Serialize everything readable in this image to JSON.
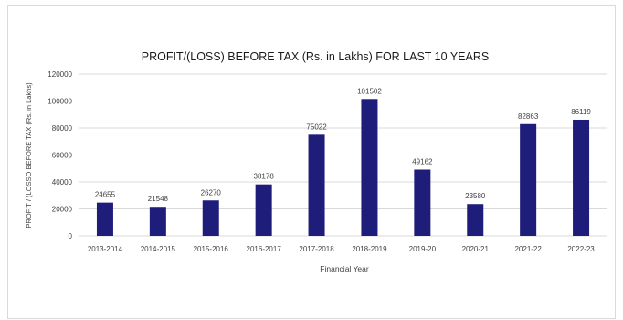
{
  "chart_data": {
    "type": "bar",
    "title": "PROFIT/(LOSS) BEFORE TAX (Rs. in Lakhs) FOR LAST 10 YEARS",
    "xlabel": "Financial Year",
    "ylabel": "PROFIT / (LOSSO BEFORE TAX (Rs. in Lakhs)",
    "categories": [
      "2013-2014",
      "2014-2015",
      "2015-2016",
      "2016-2017",
      "2017-2018",
      "2018-2019",
      "2019-20",
      "2020-21",
      "2021-22",
      "2022-23"
    ],
    "values": [
      24655,
      21548,
      26270,
      38178,
      75022,
      101502,
      49162,
      23580,
      82863,
      86119
    ],
    "data_labels": [
      "24655",
      "21548",
      "26270",
      "38178",
      "75022",
      "101502",
      "49162",
      "23580",
      "82863",
      "86119"
    ],
    "yticks": [
      0,
      20000,
      40000,
      60000,
      80000,
      100000,
      120000
    ],
    "ytick_labels": [
      "0",
      "20000",
      "40000",
      "60000",
      "80000",
      "100000",
      "120000"
    ],
    "ylim": [
      0,
      120000
    ],
    "grid": true,
    "legend": "none",
    "colors": {
      "bar": "#1f1d7a",
      "grid": "#d9d9d9",
      "text": "#404040"
    }
  }
}
